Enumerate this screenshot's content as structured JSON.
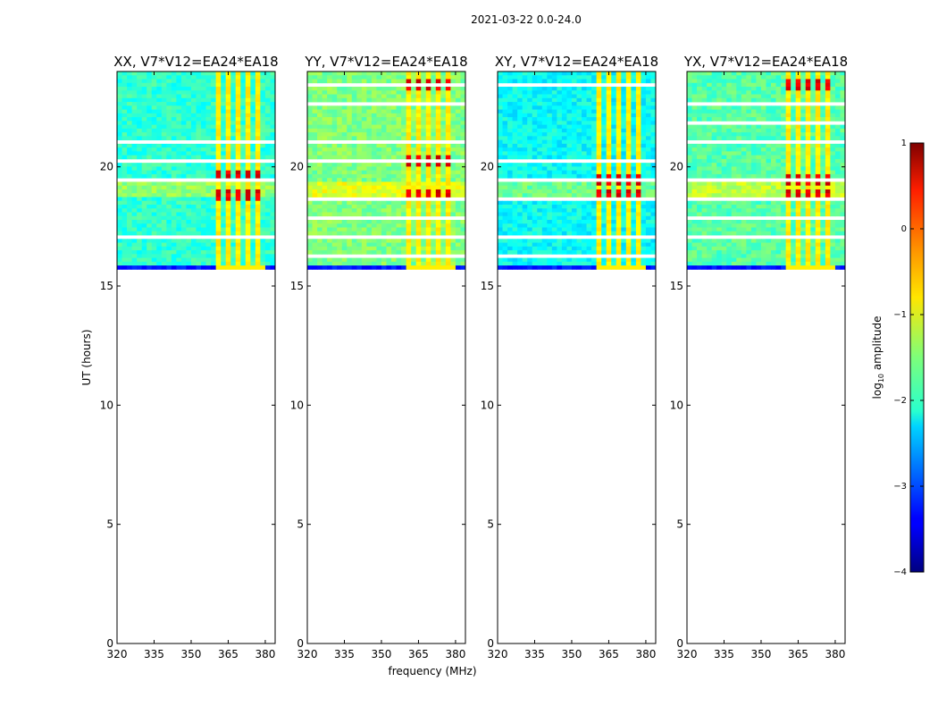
{
  "chart_data": {
    "type": "heatmap",
    "title": "2021-03-22 0.0-24.0",
    "xlabel": "frequency (MHz)",
    "ylabel": "UT (hours)",
    "xlim": [
      320,
      384
    ],
    "ylim": [
      0,
      24
    ],
    "xticks": [
      320,
      335,
      350,
      365,
      380
    ],
    "yticks": [
      0,
      5,
      10,
      15,
      20
    ],
    "data_start_hour": 15.7,
    "data_end_hour": 24,
    "rfi_band_mhz": [
      360,
      380
    ],
    "panels": [
      {
        "title": "XX, V7*V12=EA24*EA18",
        "base_level": -1.9,
        "strong_rows": [
          18.8,
          19.6
        ]
      },
      {
        "title": "YY, V7*V12=EA24*EA18",
        "base_level": -1.5,
        "strong_rows": [
          18.8,
          20.2,
          23.5
        ]
      },
      {
        "title": "XY, V7*V12=EA24*EA18",
        "base_level": -2.1,
        "strong_rows": [
          18.8,
          19.5
        ]
      },
      {
        "title": "YX, V7*V12=EA24*EA18",
        "base_level": -1.7,
        "strong_rows": [
          18.8,
          19.5,
          23.5
        ]
      }
    ],
    "colorbar": {
      "label": "log10 amplitude",
      "label_main": "log",
      "label_sub": "10",
      "label_rest": " amplitude",
      "ticks": [
        1,
        0,
        -1,
        -2,
        -3,
        -4
      ],
      "tick_labels": [
        "1",
        "0",
        "−1",
        "−2",
        "−3",
        "−4"
      ],
      "range": [
        -4,
        1
      ],
      "colormap": "jet"
    }
  }
}
